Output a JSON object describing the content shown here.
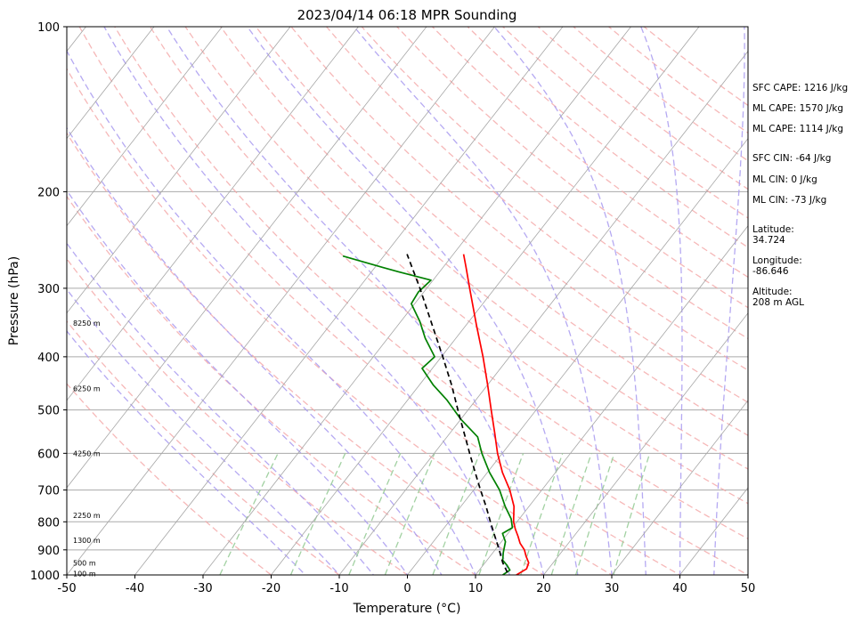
{
  "chart_data": {
    "type": "line",
    "title": "2023/04/14 06:18 MPR Sounding",
    "xlabel": "Temperature (°C)",
    "ylabel": "Pressure (hPa)",
    "xlim": [
      -50,
      50
    ],
    "ylim": [
      1000,
      100
    ],
    "y_scale": "log",
    "skew": true,
    "grid": true,
    "x_ticks": [
      -50,
      -40,
      -30,
      -20,
      -10,
      0,
      10,
      20,
      30,
      40,
      50
    ],
    "y_ticks": [
      1000,
      900,
      800,
      700,
      600,
      500,
      400,
      300,
      200,
      100
    ],
    "colors": {
      "temperature": "#ff0000",
      "dewpoint": "#008000",
      "parcel": "#000000",
      "dry_adiabat": "#f4a6a6",
      "moist_adiabat": "#a89af0",
      "mixing_ratio": "#98cc98",
      "isotherm": "#a6a6a6",
      "grid": "#aaaaaa"
    },
    "series": [
      {
        "key": "temperature",
        "values": [
          [
            1000,
            16.0
          ],
          [
            975,
            16.8
          ],
          [
            950,
            16.4
          ],
          [
            925,
            15.3
          ],
          [
            900,
            14.3
          ],
          [
            875,
            12.9
          ],
          [
            850,
            11.8
          ],
          [
            825,
            10.6
          ],
          [
            800,
            9.5
          ],
          [
            750,
            7.8
          ],
          [
            700,
            5.3
          ],
          [
            650,
            2.2
          ],
          [
            600,
            -0.7
          ],
          [
            550,
            -3.5
          ],
          [
            500,
            -6.6
          ],
          [
            450,
            -10.0
          ],
          [
            400,
            -13.9
          ],
          [
            350,
            -18.5
          ],
          [
            300,
            -23.7
          ],
          [
            275,
            -26.6
          ],
          [
            260,
            -28.5
          ]
        ]
      },
      {
        "key": "dewpoint",
        "values": [
          [
            1000,
            14.0
          ],
          [
            980,
            14.5
          ],
          [
            960,
            13.5
          ],
          [
            940,
            12.3
          ],
          [
            910,
            11.5
          ],
          [
            870,
            10.6
          ],
          [
            840,
            9.2
          ],
          [
            820,
            10.0
          ],
          [
            790,
            8.8
          ],
          [
            750,
            6.5
          ],
          [
            700,
            3.8
          ],
          [
            650,
            0.3
          ],
          [
            600,
            -3.0
          ],
          [
            560,
            -5.5
          ],
          [
            520,
            -10.0
          ],
          [
            480,
            -14.2
          ],
          [
            450,
            -18.0
          ],
          [
            420,
            -21.5
          ],
          [
            400,
            -21.0
          ],
          [
            370,
            -24.5
          ],
          [
            345,
            -27.2
          ],
          [
            320,
            -30.5
          ],
          [
            305,
            -30.8
          ],
          [
            290,
            -30.3
          ],
          [
            280,
            -36.0
          ],
          [
            275,
            -38.8
          ],
          [
            262,
            -46.0
          ]
        ]
      },
      {
        "key": "parcel",
        "values": [
          [
            990,
            14.4
          ],
          [
            950,
            12.6
          ],
          [
            900,
            10.6
          ],
          [
            850,
            8.4
          ],
          [
            800,
            6.1
          ],
          [
            750,
            3.7
          ],
          [
            700,
            1.0
          ],
          [
            650,
            -1.8
          ],
          [
            600,
            -4.8
          ],
          [
            550,
            -8.0
          ],
          [
            500,
            -11.5
          ],
          [
            450,
            -15.3
          ],
          [
            400,
            -19.8
          ],
          [
            350,
            -25.0
          ],
          [
            300,
            -31.0
          ],
          [
            260,
            -36.8
          ]
        ]
      }
    ],
    "height_labels": [
      {
        "text": "100 m",
        "p": 995
      },
      {
        "text": "500 m",
        "p": 950
      },
      {
        "text": "1300 m",
        "p": 864
      },
      {
        "text": "2250 m",
        "p": 778
      },
      {
        "text": "4250 m",
        "p": 600
      },
      {
        "text": "6250 m",
        "p": 457
      },
      {
        "text": "8250 m",
        "p": 347
      }
    ]
  },
  "info": {
    "sfc_cape": "SFC CAPE: 1216 J/kg",
    "ml_cape_1": "ML CAPE: 1570 J/kg",
    "ml_cape_2": "ML CAPE: 1114 J/kg",
    "sfc_cin": "SFC CIN: -64 J/kg",
    "ml_cin_1": "ML CIN: 0 J/kg",
    "ml_cin_2": "ML CIN: -73 J/kg",
    "latitude": "Latitude:\n34.724",
    "longitude": "Longitude:\n-86.646",
    "altitude": "Altitude:\n208 m AGL"
  }
}
